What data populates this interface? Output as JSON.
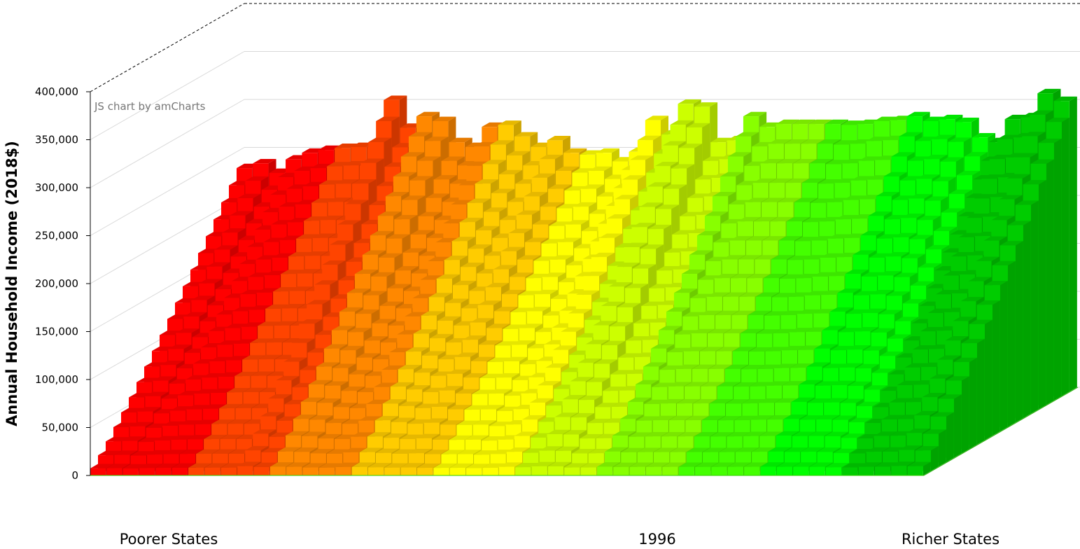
{
  "watermark": "JS chart by amCharts",
  "colors": {
    "scale": [
      "#ff0000",
      "#ff4400",
      "#ff8800",
      "#ffcc00",
      "#ffff00",
      "#ccff00",
      "#88ff00",
      "#44ff00",
      "#00ff00",
      "#00cc00"
    ],
    "gridline": "#d8d8d8",
    "axis": "#000000"
  },
  "chart_data": {
    "type": "bar",
    "subtype": "3d-stacked-column-depth",
    "ylabel": "Annual Household Income (2018$)",
    "ylim": [
      0,
      400000
    ],
    "yticks": [
      "0",
      "50,000",
      "100,000",
      "150,000",
      "200,000",
      "250,000",
      "300,000",
      "350,000",
      "400,000"
    ],
    "category_labels": {
      "left": "Poorer States",
      "center": "1996",
      "right": "Richer States"
    },
    "grid": true,
    "state_count": 51,
    "percentile_rows": 20,
    "top_income_by_state": [
      233000,
      238000,
      228000,
      242000,
      249000,
      252000,
      254000,
      255000,
      255000,
      304000,
      275000,
      287000,
      282000,
      260000,
      255000,
      276000,
      278000,
      266000,
      255000,
      262000,
      249000,
      247000,
      249000,
      240000,
      250000,
      283000,
      268000,
      300000,
      297000,
      260000,
      262000,
      287000,
      276000,
      279000,
      279000,
      279000,
      279000,
      278000,
      279000,
      282000,
      283000,
      287000,
      282000,
      284000,
      281000,
      265000,
      260000,
      284000,
      286000,
      311000,
      303000
    ]
  }
}
